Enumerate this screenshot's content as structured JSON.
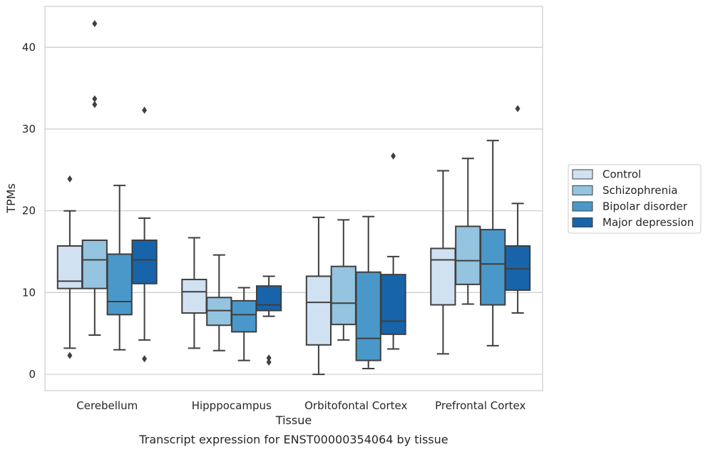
{
  "chart_data": {
    "type": "box",
    "caption": "Transcript expression for ENST00000354064 by tissue",
    "xlabel": "Tissue",
    "ylabel": "TPMs",
    "ylim": [
      -2.0,
      45.0
    ],
    "yticks": [
      0,
      10,
      20,
      30,
      40
    ],
    "grid": "horizontal",
    "legend_position": "right",
    "categories": [
      "Cerebellum",
      "Hipppocampus",
      "Orbitofontal Cortex",
      "Prefrontal Cortex"
    ],
    "series": [
      {
        "name": "Control",
        "color": "#d0e1f2",
        "boxes": [
          {
            "whislo": 3.2,
            "q1": 10.5,
            "med": 11.4,
            "q3": 15.7,
            "whishi": 20.0,
            "fliers": [
              23.9,
              2.3
            ]
          },
          {
            "whislo": 3.2,
            "q1": 7.5,
            "med": 10.1,
            "q3": 11.6,
            "whishi": 16.7,
            "fliers": []
          },
          {
            "whislo": 0.0,
            "q1": 3.6,
            "med": 8.8,
            "q3": 12.0,
            "whishi": 19.2,
            "fliers": []
          },
          {
            "whislo": 2.5,
            "q1": 8.5,
            "med": 14.0,
            "q3": 15.4,
            "whishi": 24.9,
            "fliers": []
          }
        ]
      },
      {
        "name": "Schizophrenia",
        "color": "#94c4df",
        "boxes": [
          {
            "whislo": 4.8,
            "q1": 10.5,
            "med": 14.0,
            "q3": 16.4,
            "whishi": 16.4,
            "fliers": [
              42.9,
              33.7,
              33.0
            ]
          },
          {
            "whislo": 2.9,
            "q1": 6.0,
            "med": 7.8,
            "q3": 9.4,
            "whishi": 14.6,
            "fliers": []
          },
          {
            "whislo": 4.2,
            "q1": 6.1,
            "med": 8.7,
            "q3": 13.2,
            "whishi": 18.9,
            "fliers": []
          },
          {
            "whislo": 8.6,
            "q1": 11.0,
            "med": 13.9,
            "q3": 18.1,
            "whishi": 26.4,
            "fliers": []
          }
        ]
      },
      {
        "name": "Bipolar disorder",
        "color": "#4a98c9",
        "boxes": [
          {
            "whislo": 3.0,
            "q1": 7.3,
            "med": 8.9,
            "q3": 14.7,
            "whishi": 23.1,
            "fliers": []
          },
          {
            "whislo": 1.7,
            "q1": 5.2,
            "med": 7.3,
            "q3": 9.0,
            "whishi": 10.6,
            "fliers": []
          },
          {
            "whislo": 0.7,
            "q1": 1.7,
            "med": 4.4,
            "q3": 12.5,
            "whishi": 19.3,
            "fliers": []
          },
          {
            "whislo": 3.5,
            "q1": 8.5,
            "med": 13.5,
            "q3": 17.7,
            "whishi": 28.6,
            "fliers": []
          }
        ]
      },
      {
        "name": "Major depression",
        "color": "#1764ab",
        "boxes": [
          {
            "whislo": 4.2,
            "q1": 11.1,
            "med": 14.0,
            "q3": 16.4,
            "whishi": 19.1,
            "fliers": [
              32.3,
              1.9
            ]
          },
          {
            "whislo": 7.1,
            "q1": 7.8,
            "med": 8.5,
            "q3": 10.8,
            "whishi": 12.0,
            "fliers": [
              2.0,
              1.5
            ]
          },
          {
            "whislo": 3.1,
            "q1": 4.9,
            "med": 6.5,
            "q3": 12.2,
            "whishi": 14.4,
            "fliers": [
              26.7
            ]
          },
          {
            "whislo": 7.5,
            "q1": 10.3,
            "med": 12.9,
            "q3": 15.7,
            "whishi": 20.9,
            "fliers": [
              32.5
            ]
          }
        ]
      }
    ]
  }
}
